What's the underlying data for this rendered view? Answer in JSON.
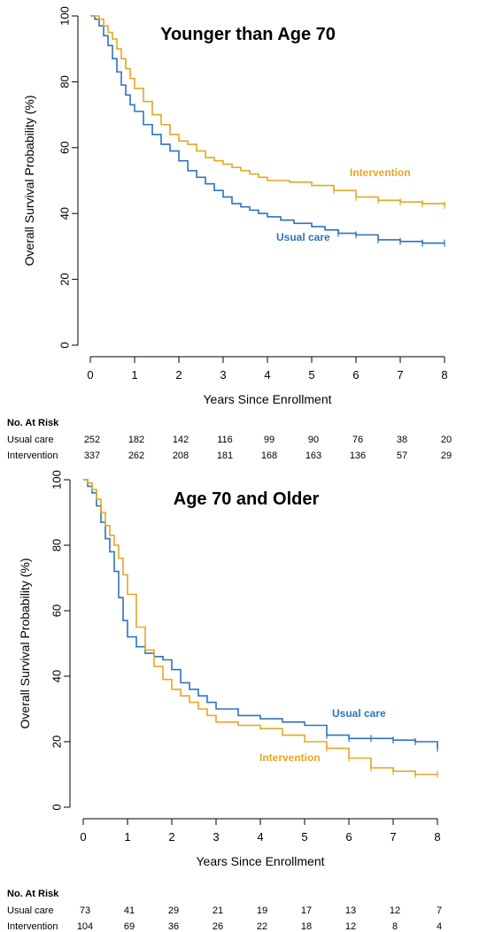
{
  "chart_data": [
    {
      "type": "line",
      "title": "Younger than Age 70",
      "xlabel": "Years Since Enrollment",
      "ylabel": "Overall Survival Probability (%)",
      "xlim": [
        0,
        8
      ],
      "ylim": [
        0,
        100
      ],
      "xticks": [
        "0",
        "1",
        "2",
        "3",
        "4",
        "5",
        "6",
        "7",
        "8"
      ],
      "yticks": [
        "0",
        "20",
        "40",
        "60",
        "80",
        "100"
      ],
      "grid": false,
      "series": [
        {
          "name": "Usual care",
          "color": "#2f73bd",
          "x": [
            0,
            0.1,
            0.2,
            0.3,
            0.4,
            0.5,
            0.6,
            0.7,
            0.8,
            0.9,
            1.0,
            1.2,
            1.4,
            1.6,
            1.8,
            2.0,
            2.2,
            2.4,
            2.6,
            2.8,
            3.0,
            3.2,
            3.4,
            3.6,
            3.8,
            4.0,
            4.3,
            4.6,
            5.0,
            5.3,
            5.6,
            6.0,
            6.5,
            7.0,
            7.5,
            8.0
          ],
          "y": [
            100,
            99,
            97,
            94,
            91,
            87,
            83,
            79,
            76,
            73,
            71,
            67,
            64,
            61,
            59,
            56,
            53,
            51,
            49,
            47,
            45,
            43,
            42,
            41,
            40,
            39,
            38,
            37,
            36,
            35,
            34,
            33.5,
            32,
            31.5,
            31,
            31
          ]
        },
        {
          "name": "Intervention",
          "color": "#e6a723",
          "x": [
            0,
            0.1,
            0.2,
            0.3,
            0.4,
            0.5,
            0.6,
            0.7,
            0.8,
            0.9,
            1.0,
            1.2,
            1.4,
            1.6,
            1.8,
            2.0,
            2.2,
            2.4,
            2.6,
            2.8,
            3.0,
            3.2,
            3.4,
            3.6,
            3.8,
            4.0,
            4.5,
            5.0,
            5.5,
            6.0,
            6.5,
            7.0,
            7.5,
            8.0
          ],
          "y": [
            100,
            100,
            99,
            97,
            95,
            93,
            90,
            87,
            84,
            81,
            78,
            74,
            70,
            67,
            64,
            62,
            61,
            59,
            57,
            56,
            55,
            54,
            53,
            52,
            51,
            50,
            49.5,
            48.5,
            47,
            45,
            44,
            43.5,
            43,
            42.5
          ]
        }
      ],
      "labels": {
        "usual": "Usual care",
        "intervention": "Intervention"
      },
      "risk_table": {
        "header": "No. At Risk",
        "rows": [
          {
            "label": "Usual care",
            "values": [
              "252",
              "182",
              "142",
              "116",
              "99",
              "90",
              "76",
              "38",
              "20"
            ]
          },
          {
            "label": "Intervention",
            "values": [
              "337",
              "262",
              "208",
              "181",
              "168",
              "163",
              "136",
              "57",
              "29"
            ]
          }
        ]
      }
    },
    {
      "type": "line",
      "title": "Age 70 and Older",
      "xlabel": "Years Since Enrollment",
      "ylabel": "Overall Survival Probability (%)",
      "xlim": [
        0,
        8
      ],
      "ylim": [
        0,
        100
      ],
      "xticks": [
        "0",
        "1",
        "2",
        "3",
        "4",
        "5",
        "6",
        "7",
        "8"
      ],
      "yticks": [
        "0",
        "20",
        "40",
        "60",
        "80",
        "100"
      ],
      "grid": false,
      "series": [
        {
          "name": "Usual care",
          "color": "#2f73bd",
          "x": [
            0,
            0.1,
            0.2,
            0.3,
            0.4,
            0.5,
            0.6,
            0.7,
            0.8,
            0.9,
            1.0,
            1.2,
            1.4,
            1.6,
            1.8,
            2.0,
            2.2,
            2.4,
            2.6,
            2.8,
            3.0,
            3.5,
            4.0,
            4.5,
            5.0,
            5.5,
            6.0,
            6.5,
            7.0,
            7.5,
            8.0
          ],
          "y": [
            100,
            98,
            96,
            92,
            87,
            82,
            78,
            72,
            64,
            57,
            52,
            49,
            47,
            46,
            45,
            42,
            38,
            36,
            34,
            32,
            30,
            28,
            27,
            26,
            25,
            22,
            21,
            21,
            20.5,
            20,
            18
          ]
        },
        {
          "name": "Intervention",
          "color": "#e6a723",
          "x": [
            0,
            0.1,
            0.2,
            0.3,
            0.4,
            0.5,
            0.6,
            0.7,
            0.8,
            0.9,
            1.0,
            1.2,
            1.4,
            1.6,
            1.8,
            2.0,
            2.2,
            2.4,
            2.6,
            2.8,
            3.0,
            3.5,
            4.0,
            4.5,
            5.0,
            5.5,
            6.0,
            6.5,
            7.0,
            7.5,
            8.0
          ],
          "y": [
            100,
            99,
            97,
            94,
            90,
            86,
            83,
            80,
            76,
            71,
            65,
            55,
            48,
            43,
            39,
            36,
            34,
            32,
            30,
            28,
            26,
            25,
            24,
            22,
            20,
            18,
            15,
            12,
            11,
            10,
            10
          ]
        }
      ],
      "labels": {
        "usual": "Usual care",
        "intervention": "Intervention"
      },
      "risk_table": {
        "header": "No. At Risk",
        "rows": [
          {
            "label": "Usual care",
            "values": [
              "73",
              "41",
              "29",
              "21",
              "19",
              "17",
              "13",
              "12",
              "7"
            ]
          },
          {
            "label": "Intervention",
            "values": [
              "104",
              "69",
              "36",
              "26",
              "22",
              "18",
              "12",
              "8",
              "4"
            ]
          }
        ]
      }
    }
  ]
}
